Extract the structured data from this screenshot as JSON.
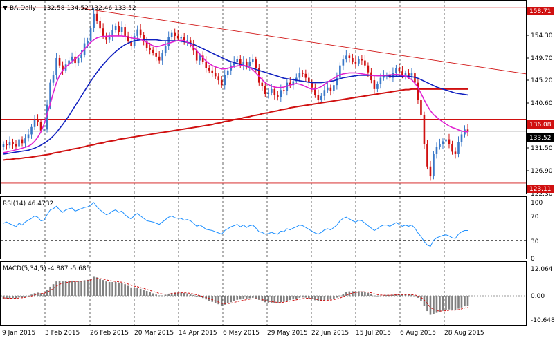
{
  "header": {
    "symbol": "BA,Daily",
    "ohlc": "132.58 134.52 132.46 133.52",
    "rsi_title": "RSI(14) 46.4732",
    "macd_title": "MACD(5,34,5) -4.887 -5.685"
  },
  "colors": {
    "background": "#ffffff",
    "bull": "#3a78c8",
    "bear": "#d01010",
    "ma_fast": "#e020d0",
    "ma_mid": "#1020c0",
    "ma_slow": "#d01010",
    "trendline": "#d01010",
    "rsi": "#1e90ff",
    "macd_hist": "#808080",
    "macd_signal": "#d01010",
    "tag_red": "#d01010",
    "tag_black": "#000000"
  },
  "price_axis": {
    "labels": [
      "154.30",
      "149.70",
      "145.20",
      "140.60",
      "131.50",
      "126.90",
      "122.30"
    ],
    "tags": [
      {
        "value": "158.71",
        "style": "red"
      },
      {
        "value": "136.08",
        "style": "red"
      },
      {
        "value": "133.52",
        "style": "black"
      },
      {
        "value": "123.11",
        "style": "red"
      }
    ]
  },
  "rsi_axis": {
    "labels": [
      "100",
      "70",
      "30",
      "0"
    ]
  },
  "macd_axis": {
    "labels": [
      "12.064",
      "0.00",
      "-10.648"
    ]
  },
  "time_axis": [
    "9 Jan 2015",
    "3 Feb 2015",
    "26 Feb 2015",
    "20 Mar 2015",
    "14 Apr 2015",
    "6 May 2015",
    "29 May 2015",
    "22 Jun 2015",
    "15 Jul 2015",
    "6 Aug 2015",
    "28 Aug 2015"
  ],
  "chart_data": {
    "type": "candlestick",
    "symbol": "BA",
    "timeframe": "Daily",
    "ylim": [
      121.0,
      160.0
    ],
    "horizontal_levels": [
      158.71,
      136.08,
      123.11
    ],
    "trendline": {
      "from": 158.6,
      "to": 145.3
    },
    "closes": [
      131.0,
      130.8,
      131.5,
      131.0,
      130.6,
      132.0,
      131.2,
      132.2,
      133.0,
      134.5,
      136.0,
      135.5,
      133.8,
      134.0,
      139.0,
      143.5,
      145.0,
      148.5,
      147.0,
      146.0,
      147.2,
      148.0,
      148.8,
      147.5,
      148.5,
      149.2,
      151.5,
      152.0,
      154.6,
      157.5,
      156.0,
      154.5,
      153.0,
      152.2,
      152.8,
      154.2,
      155.0,
      153.8,
      154.8,
      153.0,
      152.0,
      151.0,
      153.0,
      154.3,
      153.2,
      152.0,
      150.5,
      150.2,
      149.6,
      148.8,
      148.0,
      149.5,
      151.0,
      152.8,
      153.6,
      153.0,
      152.5,
      152.7,
      151.8,
      152.1,
      151.3,
      150.0,
      148.0,
      149.0,
      147.8,
      146.5,
      146.0,
      145.5,
      144.8,
      144.0,
      143.0,
      145.0,
      146.0,
      147.0,
      147.8,
      148.3,
      147.0,
      147.8,
      146.8,
      147.8,
      148.2,
      146.5,
      143.5,
      142.8,
      141.2,
      141.5,
      142.2,
      141.0,
      140.5,
      142.0,
      141.8,
      143.5,
      143.0,
      143.8,
      144.5,
      145.5,
      145.3,
      144.5,
      143.5,
      142.5,
      141.0,
      140.0,
      140.8,
      142.0,
      142.5,
      141.8,
      143.0,
      144.5,
      147.0,
      148.2,
      149.0,
      148.5,
      147.8,
      147.4,
      148.3,
      148.0,
      147.0,
      145.6,
      144.0,
      142.2,
      143.2,
      144.5,
      145.0,
      145.0,
      144.5,
      145.5,
      146.5,
      145.8,
      145.0,
      145.4,
      144.9,
      145.4,
      143.5,
      140.0,
      137.0,
      131.0,
      126.5,
      124.5,
      129.0,
      130.5,
      131.0,
      131.6,
      132.0,
      131.1,
      129.5,
      129.0,
      131.5,
      133.0,
      134.0,
      133.52
    ],
    "ma_fast": [
      129.3,
      129.4,
      129.6,
      129.7,
      129.9,
      130.0,
      130.2,
      130.4,
      130.6,
      131.0,
      131.6,
      132.4,
      133.5,
      135.0,
      137.0,
      139.2,
      141.5,
      143.5,
      145.0,
      146.0,
      146.7,
      147.2,
      147.8,
      148.3,
      148.9,
      149.6,
      150.3,
      151.0,
      151.7,
      152.2,
      152.6,
      152.8,
      152.9,
      152.9,
      153.0,
      153.0,
      153.0,
      153.0,
      153.0,
      152.9,
      152.8,
      152.6,
      152.5,
      152.5,
      152.3,
      152.0,
      151.7,
      151.3,
      151.0,
      150.8,
      150.9,
      151.1,
      151.3,
      151.5,
      151.7,
      151.9,
      152.0,
      152.1,
      152.0,
      151.7,
      151.3,
      150.7,
      150.0,
      149.3,
      148.6,
      147.9,
      147.4,
      147.0,
      146.7,
      146.5,
      146.3,
      146.3,
      146.4,
      146.6,
      146.8,
      146.9,
      147.0,
      147.0,
      146.9,
      146.6,
      146.1,
      145.5,
      144.8,
      144.1,
      143.5,
      143.1,
      142.8,
      142.6,
      142.5,
      142.5,
      142.6,
      142.8,
      143.0,
      143.2,
      143.3,
      143.2,
      143.0,
      142.7,
      142.4,
      142.2,
      142.2,
      142.4,
      142.7,
      143.1,
      143.6,
      144.0,
      144.4,
      144.8,
      145.1,
      145.3,
      145.4,
      145.5,
      145.5,
      145.5,
      145.4,
      145.3,
      145.2,
      145.1,
      145.0,
      144.9,
      144.9,
      144.9,
      145.0,
      145.0,
      145.1,
      145.1,
      145.2,
      145.1,
      145.0,
      144.8,
      144.5,
      144.1,
      143.4,
      142.5,
      141.3,
      140.0,
      138.8,
      137.8,
      137.0,
      136.5,
      136.0,
      135.5,
      135.1,
      134.7,
      134.4,
      134.2,
      133.9,
      133.7,
      133.6,
      133.5
    ],
    "ma_mid": [
      129.0,
      129.1,
      129.2,
      129.3,
      129.4,
      129.5,
      129.6,
      129.7,
      129.8,
      130.0,
      130.2,
      130.5,
      130.8,
      131.2,
      131.6,
      132.1,
      132.7,
      133.4,
      134.2,
      135.0,
      135.9,
      136.8,
      137.8,
      138.8,
      139.8,
      140.8,
      141.8,
      142.8,
      143.8,
      144.7,
      145.6,
      146.4,
      147.2,
      147.9,
      148.6,
      149.2,
      149.8,
      150.3,
      150.8,
      151.2,
      151.5,
      151.8,
      152.0,
      152.1,
      152.2,
      152.2,
      152.2,
      152.2,
      152.2,
      152.2,
      152.1,
      152.0,
      152.0,
      152.0,
      152.0,
      152.0,
      152.0,
      151.9,
      151.8,
      151.7,
      151.5,
      151.3,
      151.0,
      150.7,
      150.4,
      150.1,
      149.8,
      149.5,
      149.2,
      148.9,
      148.6,
      148.3,
      148.0,
      147.8,
      147.6,
      147.4,
      147.2,
      147.0,
      146.8,
      146.6,
      146.4,
      146.2,
      146.0,
      145.8,
      145.6,
      145.4,
      145.2,
      145.0,
      144.8,
      144.6,
      144.4,
      144.3,
      144.2,
      144.1,
      144.0,
      143.9,
      143.8,
      143.7,
      143.6,
      143.5,
      143.5,
      143.5,
      143.5,
      143.6,
      143.7,
      143.8,
      143.9,
      144.1,
      144.3,
      144.5,
      144.6,
      144.7,
      144.8,
      144.9,
      145.0,
      145.0,
      145.0,
      145.0,
      145.0,
      145.0,
      144.9,
      144.9,
      144.9,
      144.9,
      144.8,
      144.8,
      144.8,
      144.8,
      144.8,
      144.8,
      144.8,
      144.7,
      144.6,
      144.4,
      144.1,
      143.8,
      143.5,
      143.2,
      142.9,
      142.6,
      142.4,
      142.2,
      142.0,
      141.8,
      141.6,
      141.4,
      141.3,
      141.2,
      141.1,
      141.0
    ],
    "ma_slow": [
      127.8,
      127.9,
      127.9,
      128.0,
      128.1,
      128.1,
      128.2,
      128.3,
      128.3,
      128.4,
      128.5,
      128.6,
      128.7,
      128.8,
      128.9,
      129.0,
      129.2,
      129.3,
      129.4,
      129.6,
      129.7,
      129.8,
      130.0,
      130.1,
      130.2,
      130.4,
      130.5,
      130.7,
      130.8,
      130.9,
      131.1,
      131.2,
      131.3,
      131.5,
      131.6,
      131.7,
      131.8,
      132.0,
      132.1,
      132.2,
      132.3,
      132.4,
      132.5,
      132.6,
      132.7,
      132.8,
      132.9,
      133.0,
      133.1,
      133.2,
      133.3,
      133.4,
      133.5,
      133.6,
      133.7,
      133.8,
      133.9,
      134.0,
      134.1,
      134.2,
      134.3,
      134.4,
      134.5,
      134.6,
      134.7,
      134.8,
      134.9,
      135.0,
      135.2,
      135.3,
      135.4,
      135.6,
      135.7,
      135.8,
      136.0,
      136.1,
      136.2,
      136.4,
      136.5,
      136.6,
      136.8,
      136.9,
      137.0,
      137.2,
      137.3,
      137.4,
      137.6,
      137.7,
      137.8,
      138.0,
      138.1,
      138.2,
      138.4,
      138.5,
      138.6,
      138.7,
      138.8,
      138.9,
      139.0,
      139.1,
      139.2,
      139.3,
      139.4,
      139.5,
      139.6,
      139.7,
      139.8,
      139.9,
      140.0,
      140.1,
      140.2,
      140.3,
      140.4,
      140.5,
      140.6,
      140.7,
      140.8,
      140.9,
      141.0,
      141.1,
      141.2,
      141.3,
      141.4,
      141.5,
      141.6,
      141.7,
      141.8,
      141.9,
      142.0,
      142.1,
      142.1,
      142.2,
      142.2,
      142.2,
      142.2,
      142.2,
      142.2,
      142.2,
      142.2,
      142.2,
      142.2,
      142.2,
      142.2,
      142.2,
      142.2,
      142.2,
      142.2,
      142.2,
      142.2,
      142.2
    ],
    "rsi": [
      58,
      60,
      57,
      55,
      52,
      58,
      55,
      60,
      63,
      66,
      70,
      68,
      62,
      63,
      72,
      80,
      82,
      86,
      80,
      76,
      80,
      82,
      83,
      78,
      80,
      82,
      84,
      85,
      88,
      92,
      85,
      80,
      76,
      72,
      74,
      78,
      80,
      76,
      78,
      72,
      68,
      65,
      71,
      74,
      70,
      66,
      62,
      61,
      60,
      58,
      56,
      60,
      64,
      68,
      70,
      67,
      66,
      66,
      63,
      64,
      62,
      58,
      53,
      55,
      52,
      48,
      47,
      46,
      44,
      42,
      40,
      46,
      49,
      52,
      54,
      56,
      52,
      55,
      51,
      54,
      55,
      50,
      44,
      43,
      40,
      41,
      43,
      41,
      40,
      45,
      44,
      49,
      47,
      50,
      52,
      55,
      54,
      51,
      48,
      45,
      42,
      40,
      43,
      47,
      49,
      47,
      51,
      55,
      62,
      66,
      68,
      65,
      62,
      60,
      63,
      62,
      58,
      54,
      50,
      46,
      49,
      53,
      55,
      55,
      53,
      56,
      59,
      56,
      53,
      55,
      53,
      55,
      50,
      42,
      36,
      28,
      22,
      20,
      30,
      34,
      36,
      38,
      39,
      37,
      34,
      33,
      40,
      44,
      46,
      46
    ],
    "macd": [
      -1.5,
      -1.5,
      -1.3,
      -1.2,
      -1.2,
      -0.8,
      -0.8,
      -0.5,
      0.0,
      0.6,
      1.3,
      1.6,
      1.3,
      1.3,
      2.8,
      4.5,
      5.8,
      7.2,
      7.5,
      7.2,
      7.3,
      7.5,
      7.6,
      7.2,
      7.3,
      7.4,
      7.8,
      8.0,
      8.5,
      9.5,
      9.2,
      8.6,
      7.9,
      7.2,
      6.9,
      6.9,
      6.9,
      6.6,
      6.4,
      5.8,
      5.0,
      4.2,
      3.9,
      3.8,
      3.5,
      3.0,
      2.4,
      1.8,
      1.2,
      0.6,
      0.2,
      0.2,
      0.5,
      1.0,
      1.4,
      1.6,
      1.6,
      1.6,
      1.4,
      1.2,
      0.9,
      0.4,
      -0.3,
      -0.6,
      -1.1,
      -1.8,
      -2.4,
      -3.0,
      -3.6,
      -4.2,
      -4.8,
      -4.4,
      -3.8,
      -3.2,
      -2.6,
      -2.0,
      -1.8,
      -1.5,
      -1.4,
      -1.2,
      -1.0,
      -1.3,
      -2.0,
      -2.6,
      -3.2,
      -3.4,
      -3.4,
      -3.5,
      -3.6,
      -3.2,
      -3.0,
      -2.4,
      -2.1,
      -1.8,
      -1.4,
      -1.0,
      -0.8,
      -0.9,
      -1.2,
      -1.6,
      -2.2,
      -2.7,
      -2.7,
      -2.4,
      -2.0,
      -1.8,
      -1.5,
      -0.9,
      0.1,
      1.0,
      1.8,
      2.2,
      2.3,
      2.3,
      2.3,
      2.2,
      1.9,
      1.4,
      0.8,
      0.1,
      -0.1,
      0.1,
      0.3,
      0.4,
      0.3,
      0.5,
      0.8,
      0.8,
      0.6,
      0.6,
      0.5,
      0.6,
      0.1,
      -1.0,
      -2.4,
      -5.0,
      -7.6,
      -9.5,
      -9.0,
      -8.5,
      -8.0,
      -7.5,
      -7.0,
      -6.8,
      -6.9,
      -7.0,
      -6.4,
      -5.8,
      -5.2,
      -4.887
    ],
    "macd_signal": [
      -1.0,
      -1.2,
      -1.2,
      -1.2,
      -1.2,
      -1.1,
      -1.0,
      -0.8,
      -0.5,
      -0.1,
      0.4,
      0.9,
      1.1,
      1.2,
      1.8,
      2.7,
      3.7,
      4.9,
      5.8,
      6.3,
      6.6,
      6.9,
      7.1,
      7.2,
      7.2,
      7.3,
      7.4,
      7.6,
      7.9,
      8.4,
      8.7,
      8.6,
      8.4,
      8.0,
      7.6,
      7.4,
      7.2,
      7.0,
      6.8,
      6.4,
      5.9,
      5.3,
      4.8,
      4.5,
      4.1,
      3.7,
      3.2,
      2.7,
      2.2,
      1.7,
      1.2,
      0.9,
      0.8,
      0.9,
      1.1,
      1.3,
      1.4,
      1.5,
      1.5,
      1.4,
      1.2,
      0.9,
      0.5,
      0.1,
      -0.3,
      -0.8,
      -1.3,
      -1.9,
      -2.5,
      -3.1,
      -3.7,
      -3.9,
      -3.9,
      -3.7,
      -3.3,
      -2.9,
      -2.5,
      -2.2,
      -1.9,
      -1.7,
      -1.5,
      -1.4,
      -1.6,
      -1.9,
      -2.3,
      -2.7,
      -2.9,
      -3.1,
      -3.3,
      -3.3,
      -3.2,
      -2.9,
      -2.6,
      -2.3,
      -2.0,
      -1.7,
      -1.4,
      -1.2,
      -1.2,
      -1.3,
      -1.6,
      -2.0,
      -2.2,
      -2.3,
      -2.2,
      -2.1,
      -1.9,
      -1.6,
      -1.1,
      -0.4,
      0.3,
      0.9,
      1.4,
      1.7,
      1.9,
      2.0,
      2.0,
      1.8,
      1.5,
      1.0,
      0.6,
      0.4,
      0.3,
      0.3,
      0.3,
      0.4,
      0.5,
      0.6,
      0.6,
      0.6,
      0.6,
      0.6,
      0.4,
      0.0,
      -0.8,
      -2.1,
      -3.9,
      -5.8,
      -6.9,
      -7.4,
      -7.6,
      -7.6,
      -7.4,
      -7.2,
      -7.1,
      -7.1,
      -6.9,
      -6.5,
      -6.1,
      -5.685
    ]
  }
}
